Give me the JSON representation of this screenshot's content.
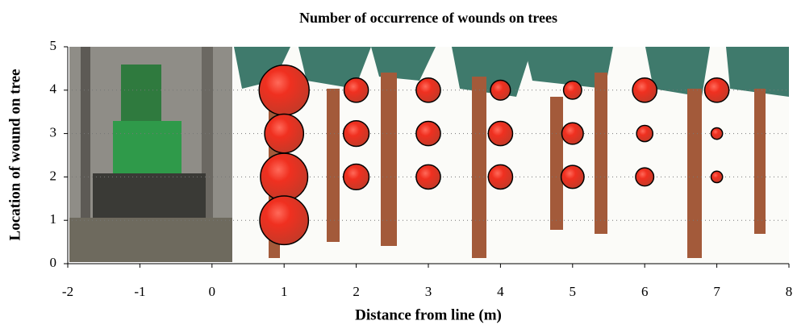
{
  "chart_data": {
    "type": "bubble",
    "title": "Number of occurrence of wounds on trees",
    "x_label": "Distance from line (m)",
    "y_label": "Location of wound on tree",
    "x": [
      1,
      1,
      1,
      1,
      2,
      2,
      2,
      3,
      3,
      3,
      4,
      4,
      4,
      5,
      5,
      5,
      6,
      6,
      6,
      7,
      7,
      7
    ],
    "values": [
      4,
      3,
      2,
      1,
      4,
      3,
      2,
      4,
      3,
      2,
      4,
      3,
      2,
      4,
      3,
      2,
      4,
      3,
      2,
      4,
      3,
      2
    ],
    "sizes": [
      38,
      23,
      34,
      36,
      9,
      10,
      10,
      9,
      9,
      9,
      6,
      9,
      9,
      5,
      7,
      8,
      9,
      4,
      5,
      9,
      2,
      2
    ],
    "color": "#e8281e",
    "xlim": [
      -2,
      8
    ],
    "xticks": [
      -2,
      -1,
      0,
      1,
      2,
      3,
      4,
      5,
      6,
      7,
      8
    ],
    "ylim": [
      0,
      5
    ],
    "yticks": [
      0,
      1,
      2,
      3,
      4,
      5
    ],
    "grid": true
  }
}
